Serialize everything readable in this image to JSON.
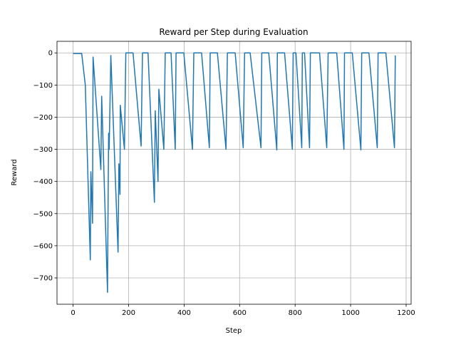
{
  "chart_data": {
    "type": "line",
    "title": "Reward per Step during Evaluation",
    "xlabel": "Step",
    "ylabel": "Reward",
    "xlim": [
      -58,
      1218
    ],
    "ylim": [
      -782,
      36
    ],
    "xticks": [
      0,
      200,
      400,
      600,
      800,
      1000,
      1200
    ],
    "yticks": [
      {
        "value": -700,
        "label": "−700"
      },
      {
        "value": -600,
        "label": "−600"
      },
      {
        "value": -500,
        "label": "−500"
      },
      {
        "value": -400,
        "label": "−400"
      },
      {
        "value": -300,
        "label": "−300"
      },
      {
        "value": -200,
        "label": "−200"
      },
      {
        "value": -100,
        "label": "−100"
      },
      0
    ],
    "grid": true,
    "series": [
      {
        "name": "Reward",
        "color": "#1f77b4",
        "x": [
          0,
          31,
          44,
          62,
          64,
          70,
          72,
          100,
          103,
          124,
          126,
          128,
          130,
          136,
          162,
          165,
          169,
          170,
          185,
          190,
          216,
          245,
          250,
          270,
          293,
          296,
          306,
          309,
          327,
          332,
          353,
          368,
          371,
          399,
          430,
          435,
          463,
          491,
          494,
          520,
          551,
          556,
          584,
          613,
          618,
          638,
          677,
          680,
          705,
          734,
          736,
          762,
          790,
          793,
          803,
          824,
          826,
          834,
          852,
          855,
          888,
          914,
          919,
          950,
          976,
          978,
          1006,
          1037,
          1040,
          1066,
          1096,
          1099,
          1127,
          1158,
          1161
        ],
        "values": [
          -2,
          -2,
          -100,
          -644,
          -370,
          -530,
          -13,
          -363,
          -135,
          -745,
          -478,
          -250,
          -300,
          -8,
          -620,
          -345,
          -440,
          -163,
          -300,
          0,
          0,
          -290,
          0,
          0,
          -465,
          -180,
          -400,
          -113,
          -300,
          0,
          0,
          -300,
          0,
          0,
          -300,
          0,
          0,
          -295,
          0,
          0,
          -300,
          0,
          0,
          -295,
          0,
          0,
          -295,
          0,
          0,
          -302,
          0,
          0,
          -300,
          0,
          0,
          -295,
          0,
          0,
          -295,
          0,
          0,
          -295,
          0,
          0,
          -300,
          0,
          0,
          -302,
          0,
          0,
          -295,
          0,
          0,
          -295,
          -8
        ]
      }
    ]
  }
}
